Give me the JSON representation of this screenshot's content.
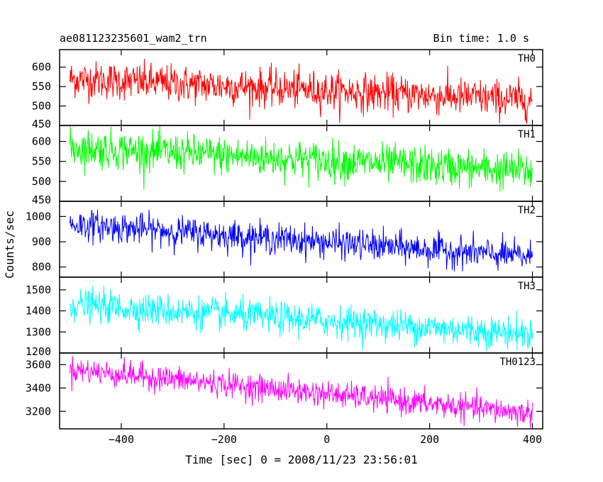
{
  "header": {
    "title": "ae081123235601_wam2_trn",
    "bin_time": "Bin time: 1.0 s"
  },
  "axes": {
    "xlabel": "Time [sec] 0 = 2008/11/23 23:56:01",
    "ylabel": "Counts/sec",
    "xlim": [
      -520,
      420
    ],
    "xticks": [
      -400,
      -200,
      0,
      200,
      400
    ],
    "xtick_labels": [
      "−400",
      "−200",
      "0",
      "200",
      "400"
    ]
  },
  "chart_data": {
    "type": "line",
    "title": "ae081123235601_wam2_trn",
    "xlabel": "Time [sec] 0 = 2008/11/23 23:56:01",
    "ylabel": "Counts/sec",
    "x_range": [
      -500,
      400
    ],
    "bin_seconds": 1.0,
    "grid": false,
    "shared_x": true,
    "series": [
      {
        "name": "TH0",
        "color": "#ff0000",
        "ylim": [
          450,
          645
        ],
        "yticks": [
          450,
          500,
          550,
          600
        ],
        "trend_start": 570,
        "trend_end": 515,
        "noise_sd": 24
      },
      {
        "name": "TH1",
        "color": "#00ff00",
        "ylim": [
          450,
          640
        ],
        "yticks": [
          450,
          500,
          550,
          600
        ],
        "trend_start": 585,
        "trend_end": 525,
        "noise_sd": 24
      },
      {
        "name": "TH2",
        "color": "#0000ff",
        "ylim": [
          760,
          1060
        ],
        "yticks": [
          800,
          900,
          1000
        ],
        "trend_start": 970,
        "trend_end": 840,
        "noise_sd": 30
      },
      {
        "name": "TH3",
        "color": "#00ffff",
        "ylim": [
          1200,
          1560
        ],
        "yticks": [
          1200,
          1300,
          1400,
          1500
        ],
        "trend_start": 1430,
        "trend_end": 1290,
        "noise_sd": 38
      },
      {
        "name": "TH0123",
        "color": "#ff00ff",
        "ylim": [
          3050,
          3700
        ],
        "yticks": [
          3200,
          3400,
          3600
        ],
        "trend_start": 3560,
        "trend_end": 3180,
        "noise_sd": 55
      }
    ]
  }
}
